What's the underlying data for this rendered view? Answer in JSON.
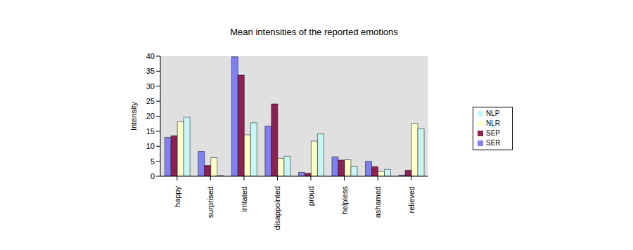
{
  "chart_data": {
    "type": "bar",
    "title": "Mean intensities of the reported emotions",
    "y_label": "Intensity",
    "categories": [
      "happy",
      "surprised",
      "irritated",
      "disappointed",
      "proud",
      "helpless",
      "ashamed",
      "relieved"
    ],
    "series": [
      {
        "name": "SER",
        "color": "#8080f0",
        "values": [
          13,
          8.3,
          39.8,
          16.7,
          1.3,
          6.5,
          5,
          0.4
        ]
      },
      {
        "name": "SEP",
        "color": "#8b2252",
        "values": [
          13.5,
          3.6,
          33.7,
          24.1,
          1,
          5.4,
          3.2,
          2
        ]
      },
      {
        "name": "NLR",
        "color": "#ffffc8",
        "values": [
          18.2,
          6.2,
          13.8,
          6,
          11.7,
          5.5,
          1.6,
          17.6
        ]
      },
      {
        "name": "NLP",
        "color": "#c8f5f5",
        "values": [
          19.7,
          0.3,
          17.8,
          6.7,
          14.1,
          3.2,
          2.3,
          15.8
        ]
      }
    ],
    "ylim": [
      0,
      40
    ],
    "yticks": [
      0,
      5,
      10,
      15,
      20,
      25,
      30,
      35,
      40
    ],
    "grid": false,
    "legend": "right"
  }
}
